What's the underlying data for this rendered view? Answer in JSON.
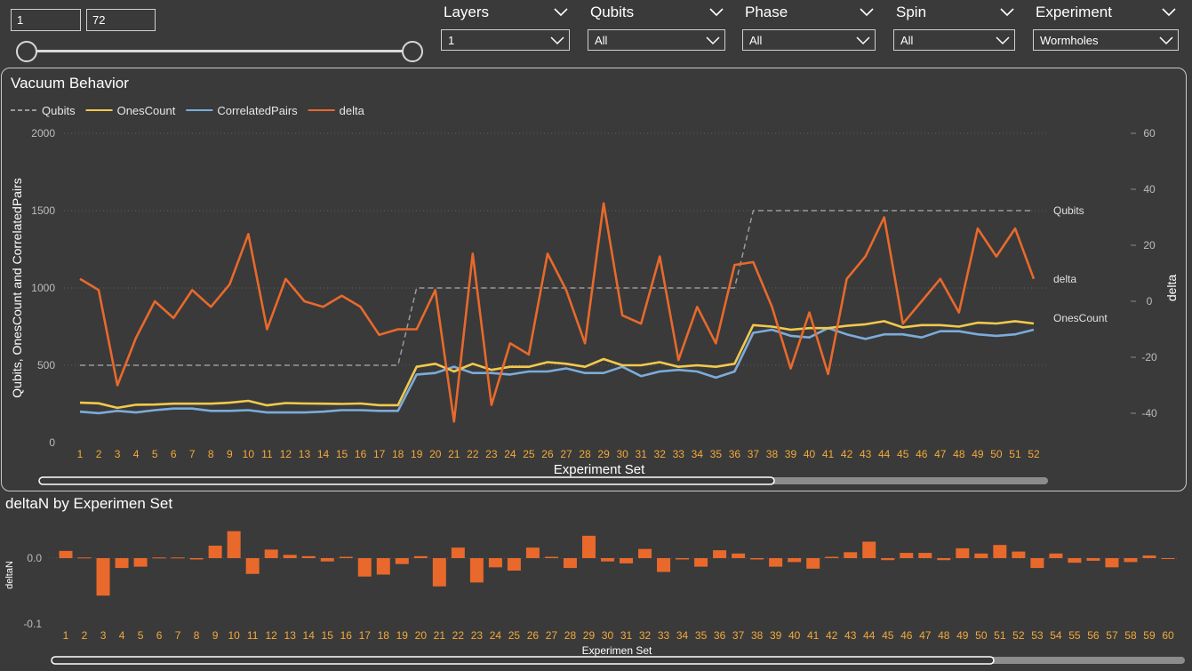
{
  "range_filter": {
    "min": "1",
    "max": "72"
  },
  "slicers": [
    {
      "title": "Layers",
      "value": "1"
    },
    {
      "title": "Qubits",
      "value": "All"
    },
    {
      "title": "Phase",
      "value": "All"
    },
    {
      "title": "Spin",
      "value": "All"
    },
    {
      "title": "Experiment",
      "value": "Wormholes"
    }
  ],
  "colors": {
    "background": "#3a3a3a",
    "qubits": "#9a9a9a",
    "ones": "#f2c94c",
    "pairs": "#7cacdb",
    "delta": "#e8692b",
    "bar": "#e8692b",
    "tick_orange": "#f2a93b"
  },
  "chart_data": [
    {
      "type": "line",
      "title": "Vacuum Behavior",
      "xlabel": "Experiment Set",
      "ylabel": "Qubits, OnesCount and CorrelatedPairs",
      "ylabel_right": "delta",
      "ylim": [
        0,
        2000
      ],
      "yticks": [
        "0",
        "500",
        "1000",
        "1500",
        "2000"
      ],
      "ylim_right": [
        -50,
        60
      ],
      "yticks_right": [
        "-40",
        "-20",
        "0",
        "20",
        "40",
        "60"
      ],
      "grid": true,
      "legend_position": "top-left",
      "x": [
        "1",
        "2",
        "3",
        "4",
        "5",
        "6",
        "7",
        "8",
        "9",
        "10",
        "11",
        "12",
        "13",
        "14",
        "15",
        "16",
        "17",
        "18",
        "19",
        "20",
        "21",
        "22",
        "23",
        "24",
        "25",
        "26",
        "27",
        "28",
        "29",
        "30",
        "31",
        "32",
        "33",
        "34",
        "35",
        "36",
        "37",
        "38",
        "39",
        "40",
        "41",
        "42",
        "43",
        "44",
        "45",
        "46",
        "47",
        "48",
        "49",
        "50",
        "51",
        "52"
      ],
      "series": [
        {
          "name": "Qubits",
          "axis": "left",
          "style": "dashed",
          "end_label": "Qubits",
          "values": [
            500,
            500,
            500,
            500,
            500,
            500,
            500,
            500,
            500,
            500,
            500,
            500,
            500,
            500,
            500,
            500,
            500,
            500,
            1000,
            1000,
            1000,
            1000,
            1000,
            1000,
            1000,
            1000,
            1000,
            1000,
            1000,
            1000,
            1000,
            1000,
            1000,
            1000,
            1000,
            1000,
            1500,
            1500,
            1500,
            1500,
            1500,
            1500,
            1500,
            1500,
            1500,
            1500,
            1500,
            1500,
            1500,
            1500,
            1500,
            1500
          ]
        },
        {
          "name": "OnesCount",
          "axis": "left",
          "style": "solid",
          "end_label": "OnesCount",
          "values": [
            258,
            254,
            225,
            245,
            246,
            252,
            252,
            252,
            258,
            270,
            241,
            256,
            253,
            252,
            250,
            253,
            242,
            242,
            490,
            510,
            460,
            510,
            470,
            490,
            490,
            520,
            510,
            490,
            540,
            500,
            500,
            520,
            490,
            500,
            490,
            510,
            760,
            750,
            730,
            740,
            740,
            755,
            765,
            785,
            745,
            760,
            760,
            750,
            775,
            770,
            785,
            770
          ]
        },
        {
          "name": "CorrelatedPairs",
          "axis": "left",
          "style": "solid",
          "values": [
            200,
            190,
            205,
            195,
            210,
            220,
            220,
            205,
            205,
            210,
            195,
            195,
            195,
            200,
            210,
            210,
            205,
            205,
            440,
            450,
            490,
            450,
            450,
            440,
            460,
            460,
            480,
            450,
            450,
            490,
            430,
            460,
            470,
            460,
            420,
            460,
            710,
            730,
            690,
            680,
            740,
            700,
            670,
            700,
            700,
            680,
            720,
            720,
            700,
            690,
            700,
            730
          ]
        },
        {
          "name": "delta",
          "axis": "right",
          "style": "solid",
          "end_label": "delta",
          "values": [
            8,
            4,
            -30,
            -13,
            0,
            -6,
            4,
            -2,
            6,
            24,
            -10,
            8,
            0,
            -2,
            2,
            -2,
            -12,
            -10,
            -10,
            4,
            -43,
            17,
            -37,
            -15,
            -19,
            17,
            4,
            -15,
            35,
            -5,
            -8,
            16,
            -21,
            -2,
            -15,
            13,
            14,
            -2,
            -24,
            -4,
            -26,
            8,
            16,
            30,
            -8,
            0,
            8,
            -4,
            26,
            16,
            26,
            8
          ]
        }
      ]
    },
    {
      "type": "bar",
      "title": "deltaN by Experimen Set",
      "xlabel": "Experimen Set",
      "ylabel": "deltaN",
      "ylim": [
        -0.12,
        0.05
      ],
      "yticks": [
        "0.0",
        "-0.1"
      ],
      "categories": [
        "1",
        "2",
        "3",
        "4",
        "5",
        "6",
        "7",
        "8",
        "9",
        "10",
        "11",
        "12",
        "13",
        "14",
        "15",
        "16",
        "17",
        "18",
        "19",
        "20",
        "21",
        "22",
        "23",
        "24",
        "25",
        "26",
        "27",
        "28",
        "29",
        "30",
        "31",
        "32",
        "33",
        "34",
        "35",
        "36",
        "37",
        "38",
        "39",
        "40",
        "41",
        "42",
        "43",
        "44",
        "45",
        "46",
        "47",
        "48",
        "49",
        "50",
        "51",
        "52",
        "53",
        "54",
        "55",
        "56",
        "57",
        "58",
        "59",
        "60"
      ],
      "values": [
        0.011,
        0.001,
        -0.057,
        -0.015,
        -0.013,
        0.001,
        0.001,
        -0.002,
        0.019,
        0.041,
        -0.024,
        0.013,
        0.005,
        0.003,
        -0.005,
        0.002,
        -0.028,
        -0.025,
        -0.009,
        0.003,
        -0.043,
        0.016,
        -0.037,
        -0.014,
        -0.019,
        0.016,
        0.002,
        -0.015,
        0.034,
        -0.005,
        -0.008,
        0.014,
        -0.021,
        -0.002,
        -0.013,
        0.012,
        0.007,
        -0.002,
        -0.013,
        -0.006,
        -0.016,
        0.002,
        0.009,
        0.025,
        -0.003,
        0.008,
        0.008,
        -0.003,
        0.015,
        0.007,
        0.02,
        0.01,
        -0.015,
        0.007,
        -0.007,
        -0.004,
        -0.014,
        -0.006,
        0.004,
        -0.001
      ]
    }
  ]
}
